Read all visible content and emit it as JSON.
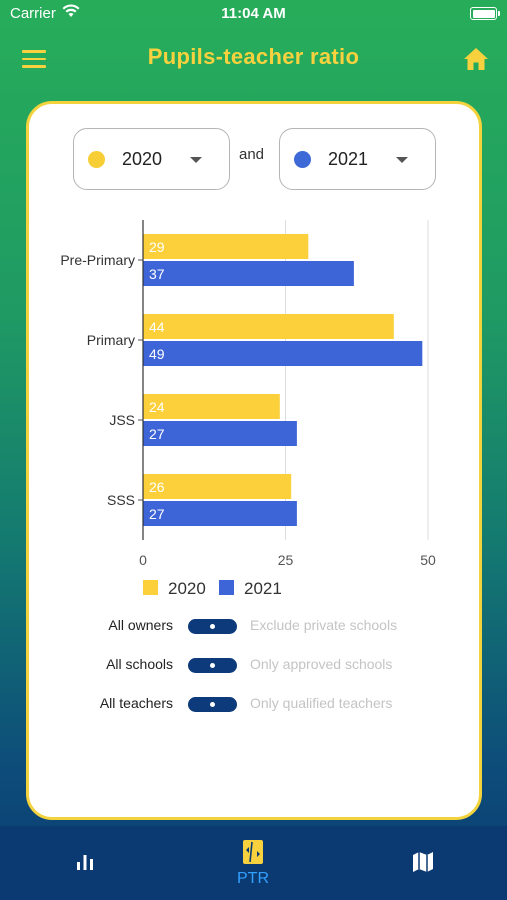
{
  "status": {
    "carrier": "Carrier",
    "time": "11:04 AM"
  },
  "header": {
    "title": "Pupils-teacher ratio"
  },
  "selectors": {
    "left": {
      "value": "2020",
      "color": "#f7ce35"
    },
    "joiner": "and",
    "right": {
      "value": "2021",
      "color": "#3d6ad6"
    }
  },
  "chart_data": {
    "type": "bar",
    "orientation": "horizontal",
    "categories": [
      "Pre-Primary",
      "Primary",
      "JSS",
      "SSS"
    ],
    "series": [
      {
        "name": "2020",
        "values": [
          29,
          44,
          24,
          26
        ],
        "color": "#fcd03a"
      },
      {
        "name": "2021",
        "values": [
          37,
          49,
          27,
          27
        ],
        "color": "#3d65d8"
      }
    ],
    "xlim": [
      0,
      50
    ],
    "xticks": [
      0,
      25,
      50
    ],
    "grid": true,
    "legend": "bottom"
  },
  "toggles": [
    {
      "left": "All owners",
      "right": "Exclude private schools"
    },
    {
      "left": "All schools",
      "right": "Only approved schools"
    },
    {
      "left": "All teachers",
      "right": "Only qualified teachers"
    }
  ],
  "tabs": [
    {
      "icon": "bar-chart-icon",
      "label": ""
    },
    {
      "icon": "ptr-icon",
      "label": "PTR",
      "active": true
    },
    {
      "icon": "map-icon",
      "label": ""
    }
  ],
  "colors": {
    "accent": "#f7d23e",
    "active_tab": "#33a0ff",
    "tabbar": "#0b3a72"
  }
}
